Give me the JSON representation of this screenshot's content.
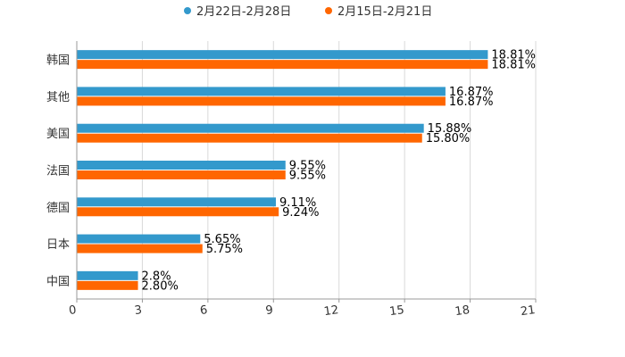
{
  "chart_data": {
    "type": "bar",
    "orientation": "horizontal",
    "categories": [
      "韩国",
      "其他",
      "美国",
      "法国",
      "德国",
      "日本",
      "中国"
    ],
    "series": [
      {
        "name": "2月22日-2月28日",
        "color": "#3399CC",
        "values": [
          18.81,
          16.87,
          15.88,
          9.55,
          9.11,
          5.65,
          2.8
        ],
        "labels": [
          "18.81%",
          "16.87%",
          "15.88%",
          "9.55%",
          "9.11%",
          "5.65%",
          "2.8%"
        ]
      },
      {
        "name": "2月15日-2月21日",
        "color": "#FF6600",
        "values": [
          18.81,
          16.87,
          15.8,
          9.55,
          9.24,
          5.75,
          2.8
        ],
        "labels": [
          "18.81%",
          "16.87%",
          "15.80%",
          "9.55%",
          "9.24%",
          "5.75%",
          "2.80%"
        ]
      }
    ],
    "xlim": [
      0,
      21
    ],
    "ticks": [
      "0",
      "3",
      "6",
      "9",
      "12",
      "15",
      "18",
      "21"
    ],
    "grid": true,
    "legend_position": "top-center",
    "title": "",
    "xlabel": "",
    "ylabel": ""
  }
}
